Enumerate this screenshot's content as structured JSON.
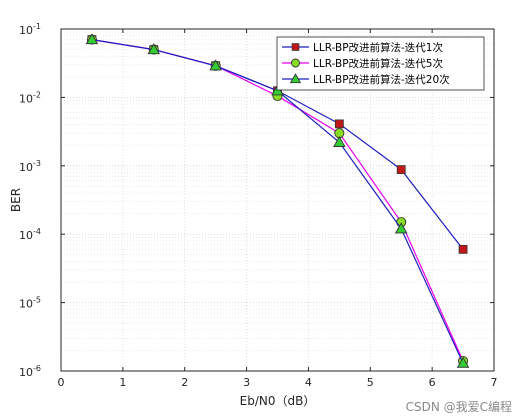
{
  "chart_data": {
    "type": "line",
    "title": "",
    "xlabel": "Eb/N0（dB）",
    "ylabel": "BER",
    "xlim": [
      0,
      7
    ],
    "ylim": [
      1e-06,
      0.1
    ],
    "yscale": "log",
    "xticks": [
      0,
      1,
      2,
      3,
      4,
      5,
      6,
      7
    ],
    "yticks": [
      {
        "value": 1e-06,
        "base": "10",
        "exp": "-6"
      },
      {
        "value": 1e-05,
        "base": "10",
        "exp": "-5"
      },
      {
        "value": 0.0001,
        "base": "10",
        "exp": "-4"
      },
      {
        "value": 0.001,
        "base": "10",
        "exp": "-3"
      },
      {
        "value": 0.01,
        "base": "10",
        "exp": "-2"
      },
      {
        "value": 0.1,
        "base": "10",
        "exp": "-1"
      }
    ],
    "grid": true,
    "legend_position": "top-right",
    "series": [
      {
        "name": "LLR-BP改进前算法-迭代1次",
        "color": "#1f1fbf",
        "marker": "square",
        "marker_fill": "#c01818",
        "x": [
          0.5,
          1.5,
          2.5,
          3.5,
          4.5,
          5.5,
          6.5
        ],
        "y": [
          0.07,
          0.05,
          0.029,
          0.0125,
          0.0041,
          0.00088,
          6e-05
        ]
      },
      {
        "name": "LLR-BP改进前算法-迭代5次",
        "color": "#ee00ee",
        "marker": "circle",
        "marker_fill": "#88dd22",
        "x": [
          0.5,
          1.5,
          2.5,
          3.5,
          4.5,
          5.5,
          6.5
        ],
        "y": [
          0.07,
          0.05,
          0.029,
          0.0105,
          0.003,
          0.00015,
          1.4e-06
        ]
      },
      {
        "name": "LLR-BP改进前算法-迭代20次",
        "color": "#1f1fbf",
        "marker": "triangle",
        "marker_fill": "#33cc33",
        "x": [
          0.5,
          1.5,
          2.5,
          3.5,
          4.5,
          5.5,
          6.5
        ],
        "y": [
          0.07,
          0.05,
          0.029,
          0.0125,
          0.0022,
          0.00012,
          1.3e-06
        ]
      }
    ]
  },
  "watermark": "CSDN @我爱C编程"
}
